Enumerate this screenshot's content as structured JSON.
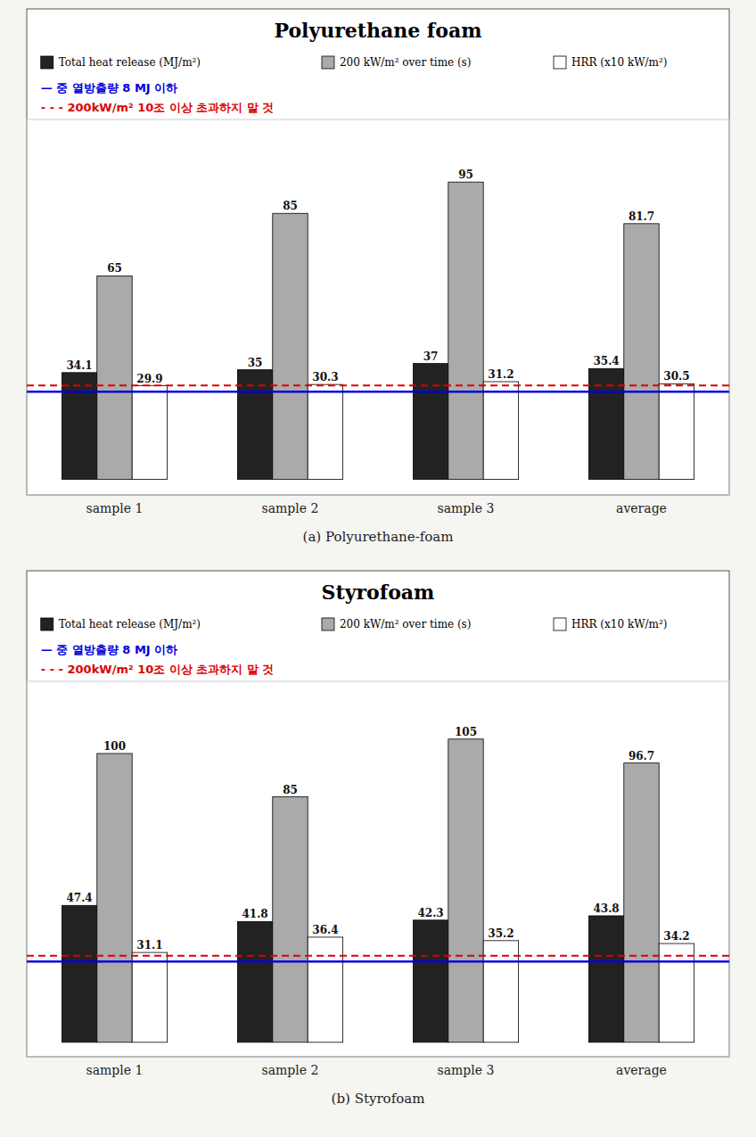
{
  "chart_data": [
    {
      "type": "bar",
      "title": "Polyurethane foam",
      "categories": [
        "sample 1",
        "sample 2",
        "sample 3",
        "average"
      ],
      "series": [
        {
          "name": "Total heat release (MJ/m²)",
          "color": "#222222",
          "values": [
            34.1,
            35,
            37,
            35.4
          ]
        },
        {
          "name": "200 kW/m² over time (s)",
          "color": "#aaaaaa",
          "values": [
            65,
            85,
            95,
            81.7
          ]
        },
        {
          "name": "HRR (x10 kW/m²)",
          "color": "#ffffff",
          "values": [
            29.9,
            30.3,
            31.2,
            30.5
          ]
        }
      ],
      "reference_lines": [
        {
          "value": 28,
          "label": "— 중 열방출량 8 MJ 이하",
          "color": "#0000dd",
          "line_style": "solid"
        },
        {
          "value": 30,
          "label": "- - - 200kW/m² 10조 이상 초과하지 말 것",
          "color": "#dd0000",
          "line_style": "dashed"
        }
      ],
      "caption": "(a)  Polyurethane-foam",
      "ylim": [
        -5,
        115
      ],
      "grid": false,
      "legend": "top",
      "data_labels": true,
      "tick_labels": "x"
    },
    {
      "type": "bar",
      "title": "Styrofoam",
      "categories": [
        "sample 1",
        "sample 2",
        "sample 3",
        "average"
      ],
      "series": [
        {
          "name": "Total heat release (MJ/m²)",
          "color": "#222222",
          "values": [
            47.4,
            41.8,
            42.3,
            43.8
          ]
        },
        {
          "name": "200 kW/m² over time (s)",
          "color": "#aaaaaa",
          "values": [
            100,
            85,
            105,
            96.7
          ]
        },
        {
          "name": "HRR (x10 kW/m²)",
          "color": "#ffffff",
          "values": [
            31.1,
            36.4,
            35.2,
            34.2
          ]
        }
      ],
      "reference_lines": [
        {
          "value": 28,
          "label": "— 중 열방출량 8 MJ 이하",
          "color": "#0000dd",
          "line_style": "solid"
        },
        {
          "value": 30,
          "label": "- - - 200kW/m² 10조 이상 초과하지 말 것",
          "color": "#dd0000",
          "line_style": "dashed"
        }
      ],
      "caption": "(b)  Styrofoam",
      "ylim": [
        -5,
        125
      ],
      "grid": false,
      "legend": "top",
      "data_labels": true,
      "tick_labels": "x"
    }
  ]
}
